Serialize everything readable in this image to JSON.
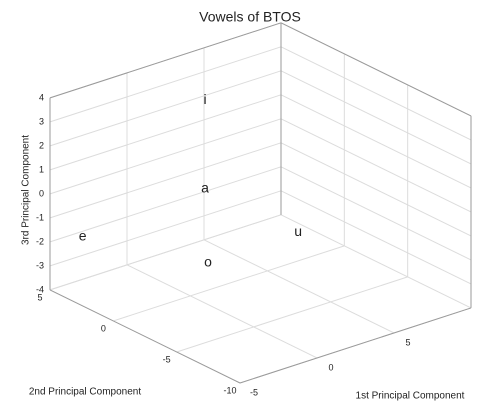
{
  "chart_data": {
    "type": "scatter3d",
    "title": "Vowels of BTOS",
    "xlabel": "1st Principal Component",
    "ylabel": "2nd Principal Component",
    "zlabel": "3rd Principal Component",
    "points": [
      {
        "label": "i",
        "x": 2.6,
        "y": 2,
        "z": 3.1
      },
      {
        "label": "a",
        "x": 2.6,
        "y": 2,
        "z": -0.6
      },
      {
        "label": "e",
        "x": -3.7,
        "y": 4,
        "z": -1.8
      },
      {
        "label": "o",
        "x": -0.5,
        "y": -2,
        "z": -2.0
      },
      {
        "label": "u",
        "x": 7.0,
        "y": 0,
        "z": -2.8
      }
    ],
    "xlim": [
      -5,
      10
    ],
    "xticks": [
      -5,
      0,
      5
    ],
    "ylim": [
      -10,
      5
    ],
    "yticks": [
      -10,
      -5,
      0,
      5
    ],
    "zlim": [
      -4,
      4
    ],
    "zticks": [
      -4,
      -3,
      -2,
      -1,
      0,
      1,
      2,
      3,
      4
    ],
    "grid": true
  }
}
